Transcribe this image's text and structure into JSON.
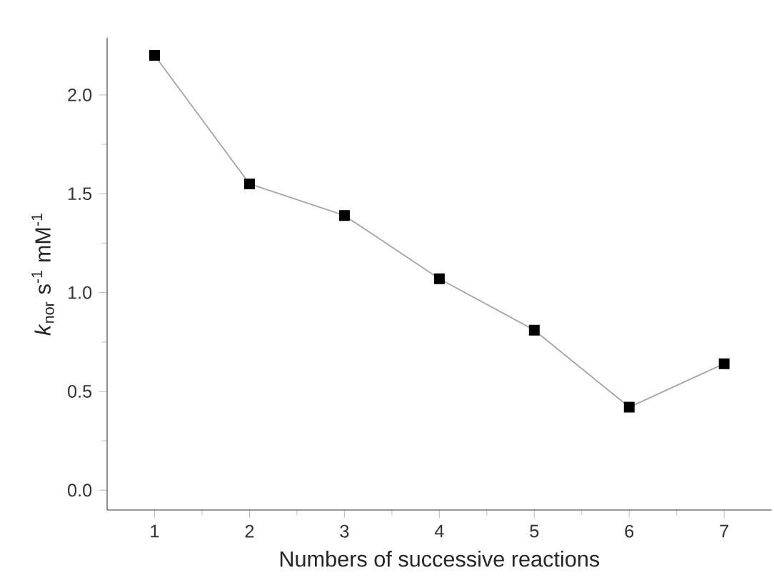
{
  "chart_data": {
    "type": "line",
    "xlabel": "Numbers of successive reactions",
    "ylabel": "*k*$_{nor}$ s$^{-1}$ mM$^{-1}$",
    "x": [
      1,
      2,
      3,
      4,
      5,
      6,
      7
    ],
    "series": [
      {
        "color": "#000000",
        "values": [
          2.2,
          1.55,
          1.39,
          1.07,
          0.81,
          0.42,
          0.64
        ]
      }
    ],
    "marker": "square",
    "line_style": "solid",
    "xlim": [
      0.5,
      7.5
    ],
    "ylim": [
      -0.1,
      2.29
    ],
    "xticks": [
      1,
      2,
      3,
      4,
      5,
      6,
      7
    ],
    "yticks": [
      {
        "value": 0,
        "label": "0.0"
      },
      0.5,
      {
        "value": 1,
        "label": "1.0"
      },
      1.5,
      {
        "value": 2,
        "label": "2.0"
      }
    ]
  }
}
